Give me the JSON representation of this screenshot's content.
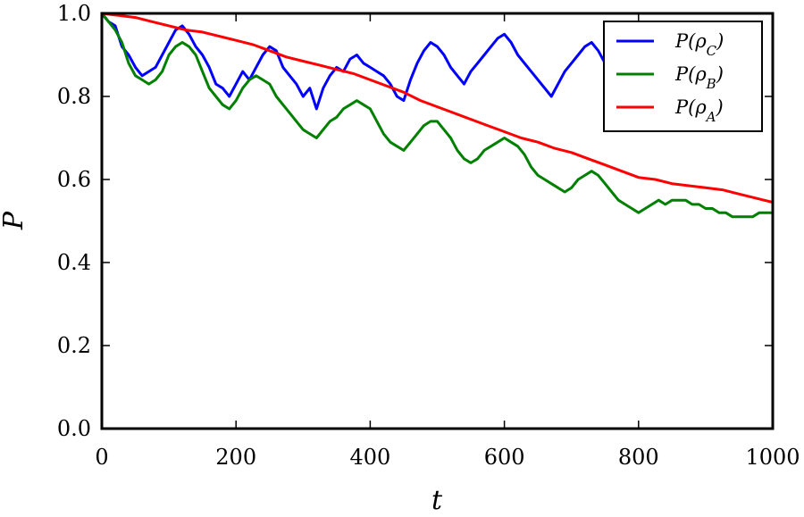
{
  "chart_data": {
    "type": "line",
    "title": "",
    "xlabel": "t",
    "ylabel": "P",
    "xlim": [
      0,
      1000
    ],
    "ylim": [
      0.0,
      1.0
    ],
    "xticks": [
      "0",
      "200",
      "400",
      "600",
      "800",
      "1000"
    ],
    "xtick_values": [
      0,
      200,
      400,
      600,
      800,
      1000
    ],
    "yticks": [
      "0.0",
      "0.2",
      "0.4",
      "0.6",
      "0.8",
      "1.0"
    ],
    "ytick_values": [
      0.0,
      0.2,
      0.4,
      0.6,
      0.8,
      1.0
    ],
    "grid": false,
    "legend_position": "top-right",
    "series": [
      {
        "name": "P(ρ_C)",
        "color": "#0000ff",
        "x": [
          0,
          10,
          20,
          30,
          40,
          50,
          60,
          70,
          80,
          90,
          100,
          110,
          120,
          130,
          140,
          150,
          160,
          170,
          180,
          190,
          200,
          210,
          220,
          230,
          240,
          250,
          260,
          270,
          280,
          290,
          300,
          310,
          320,
          330,
          340,
          350,
          360,
          370,
          380,
          390,
          400,
          410,
          420,
          430,
          440,
          450,
          460,
          470,
          480,
          490,
          500,
          510,
          520,
          530,
          540,
          550,
          560,
          570,
          580,
          590,
          600,
          610,
          620,
          630,
          640,
          650,
          660,
          670,
          680,
          690,
          700,
          710,
          720,
          730,
          740,
          750,
          760,
          770
        ],
        "values": [
          1.0,
          0.98,
          0.97,
          0.92,
          0.9,
          0.87,
          0.85,
          0.86,
          0.87,
          0.9,
          0.93,
          0.96,
          0.97,
          0.95,
          0.92,
          0.9,
          0.87,
          0.83,
          0.82,
          0.8,
          0.83,
          0.86,
          0.84,
          0.87,
          0.9,
          0.92,
          0.91,
          0.87,
          0.85,
          0.83,
          0.8,
          0.82,
          0.77,
          0.82,
          0.85,
          0.87,
          0.86,
          0.89,
          0.9,
          0.88,
          0.87,
          0.86,
          0.85,
          0.83,
          0.8,
          0.79,
          0.84,
          0.88,
          0.91,
          0.93,
          0.92,
          0.9,
          0.87,
          0.85,
          0.83,
          0.86,
          0.88,
          0.9,
          0.92,
          0.94,
          0.95,
          0.93,
          0.9,
          0.88,
          0.86,
          0.84,
          0.82,
          0.8,
          0.83,
          0.86,
          0.88,
          0.9,
          0.92,
          0.93,
          0.91,
          0.88,
          0.86,
          0.85
        ]
      },
      {
        "name": "P(ρ_B)",
        "color": "#008000",
        "x": [
          0,
          10,
          20,
          30,
          40,
          50,
          60,
          70,
          80,
          90,
          100,
          110,
          120,
          130,
          140,
          150,
          160,
          170,
          180,
          190,
          200,
          210,
          220,
          230,
          240,
          250,
          260,
          270,
          280,
          290,
          300,
          310,
          320,
          330,
          340,
          350,
          360,
          370,
          380,
          390,
          400,
          410,
          420,
          430,
          440,
          450,
          460,
          470,
          480,
          490,
          500,
          510,
          520,
          530,
          540,
          550,
          560,
          570,
          580,
          590,
          600,
          610,
          620,
          630,
          640,
          650,
          660,
          670,
          680,
          690,
          700,
          710,
          720,
          730,
          740,
          750,
          760,
          770,
          780,
          790,
          800,
          810,
          820,
          830,
          840,
          850,
          860,
          870,
          880,
          890,
          900,
          910,
          920,
          930,
          940,
          950,
          960,
          970,
          980,
          990,
          1000
        ],
        "values": [
          1.0,
          0.98,
          0.96,
          0.93,
          0.88,
          0.85,
          0.84,
          0.83,
          0.84,
          0.86,
          0.9,
          0.92,
          0.93,
          0.92,
          0.9,
          0.86,
          0.82,
          0.8,
          0.78,
          0.77,
          0.79,
          0.82,
          0.84,
          0.85,
          0.84,
          0.83,
          0.8,
          0.78,
          0.76,
          0.74,
          0.72,
          0.71,
          0.7,
          0.72,
          0.74,
          0.75,
          0.77,
          0.78,
          0.79,
          0.78,
          0.77,
          0.74,
          0.71,
          0.69,
          0.68,
          0.67,
          0.69,
          0.71,
          0.73,
          0.74,
          0.74,
          0.72,
          0.7,
          0.67,
          0.65,
          0.64,
          0.65,
          0.67,
          0.68,
          0.69,
          0.7,
          0.69,
          0.68,
          0.66,
          0.63,
          0.61,
          0.6,
          0.59,
          0.58,
          0.57,
          0.58,
          0.6,
          0.61,
          0.62,
          0.61,
          0.59,
          0.57,
          0.55,
          0.54,
          0.53,
          0.52,
          0.53,
          0.54,
          0.55,
          0.54,
          0.55,
          0.55,
          0.55,
          0.54,
          0.54,
          0.53,
          0.53,
          0.52,
          0.52,
          0.51,
          0.51,
          0.51,
          0.51,
          0.52,
          0.52,
          0.52
        ]
      },
      {
        "name": "P(ρ_A)",
        "color": "#ff0000",
        "x": [
          0,
          25,
          50,
          75,
          100,
          125,
          150,
          175,
          200,
          225,
          250,
          275,
          300,
          325,
          350,
          375,
          400,
          425,
          450,
          475,
          500,
          525,
          550,
          575,
          600,
          625,
          650,
          675,
          700,
          725,
          750,
          775,
          800,
          825,
          850,
          875,
          900,
          925,
          950,
          975,
          1000
        ],
        "values": [
          1.0,
          0.995,
          0.99,
          0.98,
          0.97,
          0.96,
          0.955,
          0.945,
          0.935,
          0.925,
          0.91,
          0.895,
          0.885,
          0.875,
          0.865,
          0.855,
          0.84,
          0.825,
          0.81,
          0.79,
          0.775,
          0.76,
          0.745,
          0.73,
          0.715,
          0.7,
          0.69,
          0.675,
          0.665,
          0.65,
          0.635,
          0.62,
          0.605,
          0.6,
          0.59,
          0.585,
          0.58,
          0.575,
          0.565,
          0.555,
          0.545
        ]
      }
    ]
  }
}
